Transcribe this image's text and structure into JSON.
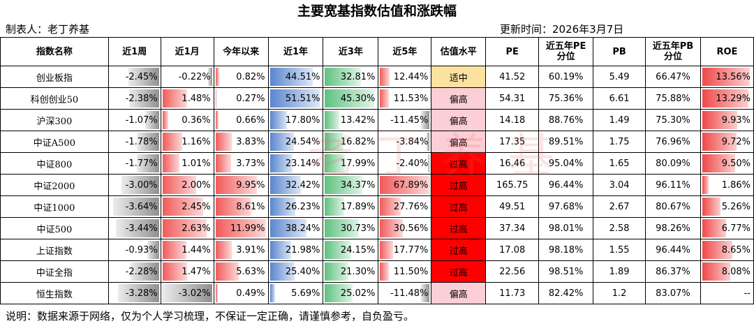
{
  "title": "主要宽基指数估值和涨跌幅",
  "author": "制表人：老丁养基",
  "updated": "更新时间：2026年3月7日",
  "watermark": "老丁养基",
  "footer": "说明：数据来源于网络，仅为个人学习梳理，不保证一定正确，请谨慎参考，自负盈亏。",
  "colors": {
    "positive_bar": "#f25b5b",
    "negative_bar": "#909090",
    "one_year_bar": "#5a86cf",
    "three_year_bar": "#5ec27f",
    "valuation_mid": "#fce2a0",
    "valuation_high": "#fccfd6",
    "valuation_over": "#ff0000"
  },
  "table": {
    "headers": [
      "指数名称",
      "近1周",
      "近1月",
      "今年以来",
      "近1年",
      "近3年",
      "近5年",
      "估值水平",
      "PE",
      "近五年PE\n分位",
      "PB",
      "近五年PB\n分位",
      "ROE"
    ],
    "rows": [
      {
        "name": "创业板指",
        "w1": "-2.45%",
        "m1": "-0.22%",
        "ytd": "0.82%",
        "y1": "44.51%",
        "y3": "32.81%",
        "y5": "12.44%",
        "level": "适中",
        "pe": "41.52",
        "pe_pct": "60.19%",
        "pb": "5.49",
        "pb_pct": "66.47%",
        "roe": "13.56%"
      },
      {
        "name": "科创创业50",
        "w1": "-2.38%",
        "m1": "1.48%",
        "ytd": "0.27%",
        "y1": "51.51%",
        "y3": "45.30%",
        "y5": "11.53%",
        "level": "偏高",
        "pe": "54.31",
        "pe_pct": "75.36%",
        "pb": "6.61",
        "pb_pct": "75.88%",
        "roe": "13.29%"
      },
      {
        "name": "沪深300",
        "w1": "-1.07%",
        "m1": "0.36%",
        "ytd": "0.66%",
        "y1": "17.80%",
        "y3": "13.42%",
        "y5": "-11.45%",
        "level": "偏高",
        "pe": "14.18",
        "pe_pct": "88.76%",
        "pb": "1.49",
        "pb_pct": "75.30%",
        "roe": "9.93%"
      },
      {
        "name": "中证A500",
        "w1": "-1.78%",
        "m1": "1.16%",
        "ytd": "3.83%",
        "y1": "24.54%",
        "y3": "16.82%",
        "y5": "-3.84%",
        "level": "偏高",
        "pe": "17.35",
        "pe_pct": "89.51%",
        "pb": "1.75",
        "pb_pct": "76.96%",
        "roe": "9.72%"
      },
      {
        "name": "中证800",
        "w1": "-1.77%",
        "m1": "1.01%",
        "ytd": "3.73%",
        "y1": "23.14%",
        "y3": "17.99%",
        "y5": "-2.40%",
        "level": "过高",
        "pe": "16.46",
        "pe_pct": "95.04%",
        "pb": "1.65",
        "pb_pct": "80.09%",
        "roe": "9.50%"
      },
      {
        "name": "中证2000",
        "w1": "-3.00%",
        "m1": "2.00%",
        "ytd": "9.95%",
        "y1": "32.42%",
        "y3": "34.37%",
        "y5": "67.89%",
        "level": "过高",
        "pe": "165.75",
        "pe_pct": "96.44%",
        "pb": "3.04",
        "pb_pct": "96.11%",
        "roe": "1.86%"
      },
      {
        "name": "中证1000",
        "w1": "-3.64%",
        "m1": "2.45%",
        "ytd": "8.61%",
        "y1": "26.23%",
        "y3": "17.89%",
        "y5": "27.76%",
        "level": "过高",
        "pe": "49.51",
        "pe_pct": "97.68%",
        "pb": "2.67",
        "pb_pct": "80.67%",
        "roe": "5.26%"
      },
      {
        "name": "中证500",
        "w1": "-3.44%",
        "m1": "2.63%",
        "ytd": "11.99%",
        "y1": "38.24%",
        "y3": "30.73%",
        "y5": "30.56%",
        "level": "过高",
        "pe": "37.34",
        "pe_pct": "98.01%",
        "pb": "2.58",
        "pb_pct": "98.26%",
        "roe": "6.77%"
      },
      {
        "name": "上证指数",
        "w1": "-0.93%",
        "m1": "1.44%",
        "ytd": "3.91%",
        "y1": "21.98%",
        "y3": "24.15%",
        "y5": "17.77%",
        "level": "过高",
        "pe": "17.08",
        "pe_pct": "98.18%",
        "pb": "1.55",
        "pb_pct": "96.44%",
        "roe": "8.65%"
      },
      {
        "name": "中证全指",
        "w1": "-2.28%",
        "m1": "1.47%",
        "ytd": "5.63%",
        "y1": "25.40%",
        "y3": "21.30%",
        "y5": "11.50%",
        "level": "过高",
        "pe": "22.56",
        "pe_pct": "98.51%",
        "pb": "1.89",
        "pb_pct": "86.37%",
        "roe": "8.08%"
      },
      {
        "name": "恒生指数",
        "w1": "-3.28%",
        "m1": "-3.02%",
        "ytd": "0.49%",
        "y1": "5.69%",
        "y3": "25.02%",
        "y5": "-11.48%",
        "level": "偏高",
        "pe": "11.73",
        "pe_pct": "82.42%",
        "pb": "1.2",
        "pb_pct": "83.07%",
        "roe": "--"
      }
    ]
  }
}
